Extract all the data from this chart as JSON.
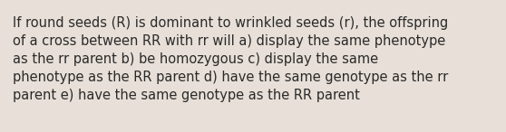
{
  "text": "If round seeds (R) is dominant to wrinkled seeds (r), the offspring\nof a cross between RR with rr will a) display the same phenotype\nas the rr parent b) be homozygous c) display the same\nphenotype as the RR parent d) have the same genotype as the rr\nparent e) have the same genotype as the RR parent",
  "background_color": "#e8e0d8",
  "text_color": "#2a2a2a",
  "font_size": 10.5,
  "font_family": "DejaVu Sans"
}
